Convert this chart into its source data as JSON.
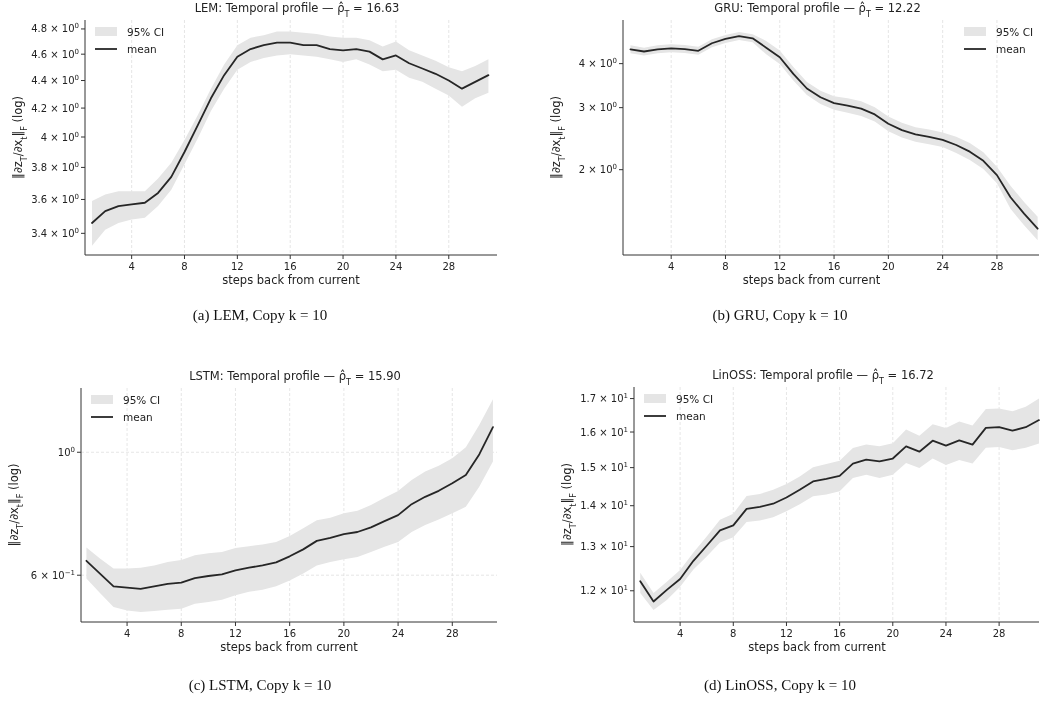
{
  "chart_data": [
    {
      "type": "line",
      "title": "LEM: Temporal profile — ρ̂$_{T}$ = 16.63",
      "xlabel": "steps back from current",
      "ylabel": "‖∂z$_{T}$/∂x$_{t}$‖$_{F}$ (log)",
      "annotations": [
        "95% CI",
        "(a) LEM, Copy k = 10"
      ],
      "log": "y",
      "grid": "x",
      "legend": "top left",
      "line_style": "solid",
      "x": [
        1,
        2,
        3,
        4,
        5,
        6,
        7,
        8,
        9,
        10,
        11,
        12,
        13,
        14,
        15,
        16,
        17,
        18,
        19,
        20,
        21,
        22,
        23,
        24,
        25,
        26,
        27,
        28,
        29,
        30,
        31
      ],
      "xlim": [
        0.47,
        31.65
      ],
      "xticks": [
        4,
        8,
        12,
        16,
        20,
        24,
        28
      ],
      "ylim": [
        3.278,
        4.873
      ],
      "yticks": [
        {
          "value": 3.4,
          "label": "3.4 × 10$^{0}$"
        },
        {
          "value": 3.6,
          "label": "3.6 × 10$^{0}$"
        },
        {
          "value": 3.8,
          "label": "3.8 × 10$^{0}$"
        },
        {
          "value": 4,
          "label": "4 × 10$^{0}$"
        },
        {
          "value": 4.2,
          "label": "4.2 × 10$^{0}$"
        },
        {
          "value": 4.4,
          "label": "4.4 × 10$^{0}$"
        },
        {
          "value": 4.6,
          "label": "4.6 × 10$^{0}$"
        },
        {
          "value": 4.8,
          "label": "4.8 × 10$^{0}$"
        }
      ],
      "series": [
        {
          "name": "mean",
          "color": "#262626",
          "values": [
            3.46,
            3.53,
            3.56,
            3.57,
            3.58,
            3.64,
            3.74,
            3.9,
            4.08,
            4.27,
            4.44,
            4.58,
            4.64,
            4.67,
            4.69,
            4.69,
            4.67,
            4.67,
            4.64,
            4.63,
            4.64,
            4.62,
            4.56,
            4.59,
            4.53,
            4.49,
            4.45,
            4.4,
            4.34,
            4.39,
            4.44
          ],
          "lower": [
            3.33,
            3.42,
            3.46,
            3.48,
            3.49,
            3.56,
            3.66,
            3.82,
            3.99,
            4.18,
            4.34,
            4.48,
            4.54,
            4.57,
            4.59,
            4.6,
            4.59,
            4.58,
            4.56,
            4.54,
            4.56,
            4.52,
            4.47,
            4.48,
            4.42,
            4.39,
            4.34,
            4.29,
            4.21,
            4.27,
            4.31
          ],
          "upper": [
            3.59,
            3.63,
            3.65,
            3.65,
            3.65,
            3.73,
            3.83,
            3.98,
            4.15,
            4.34,
            4.52,
            4.67,
            4.73,
            4.75,
            4.78,
            4.78,
            4.77,
            4.76,
            4.74,
            4.73,
            4.73,
            4.71,
            4.66,
            4.7,
            4.63,
            4.59,
            4.55,
            4.5,
            4.47,
            4.51,
            4.56
          ]
        }
      ]
    },
    {
      "type": "line",
      "title": "GRU: Temporal profile — ρ̂$_{T}$ = 12.22",
      "xlabel": "steps back from current",
      "ylabel": "‖∂z$_{T}$/∂x$_{t}$‖$_{F}$ (log)",
      "annotations": [
        "95% CI",
        "(b) GRU, Copy k = 10"
      ],
      "log": "y",
      "grid": "x",
      "legend": "top right",
      "line_style": "solid",
      "x": [
        1,
        2,
        3,
        4,
        5,
        6,
        7,
        8,
        9,
        10,
        11,
        12,
        13,
        14,
        15,
        16,
        17,
        18,
        19,
        20,
        21,
        22,
        23,
        24,
        25,
        26,
        27,
        28,
        29,
        30,
        31
      ],
      "xlim": [
        0.45,
        31.1
      ],
      "xticks": [
        4,
        8,
        12,
        16,
        20,
        24,
        28
      ],
      "ylim": [
        1.145,
        5.32
      ],
      "yticks": [
        {
          "value": 2,
          "label": "2 × 10$^{0}$"
        },
        {
          "value": 3,
          "label": "3 × 10$^{0}$"
        },
        {
          "value": 4,
          "label": "4 × 10$^{0}$"
        }
      ],
      "series": [
        {
          "name": "mean",
          "color": "#262626",
          "values": [
            4.39,
            4.33,
            4.39,
            4.42,
            4.4,
            4.35,
            4.57,
            4.7,
            4.79,
            4.72,
            4.44,
            4.17,
            3.74,
            3.4,
            3.21,
            3.09,
            3.04,
            2.98,
            2.87,
            2.7,
            2.59,
            2.52,
            2.48,
            2.43,
            2.35,
            2.25,
            2.12,
            1.93,
            1.67,
            1.5,
            1.36
          ],
          "lower": [
            4.28,
            4.22,
            4.28,
            4.31,
            4.29,
            4.24,
            4.45,
            4.58,
            4.67,
            4.6,
            4.25,
            3.99,
            3.58,
            3.26,
            3.07,
            2.96,
            2.9,
            2.84,
            2.74,
            2.57,
            2.47,
            2.4,
            2.36,
            2.32,
            2.23,
            2.13,
            2.01,
            1.83,
            1.55,
            1.39,
            1.26
          ],
          "upper": [
            4.51,
            4.44,
            4.51,
            4.54,
            4.52,
            4.47,
            4.69,
            4.82,
            4.92,
            4.85,
            4.64,
            4.36,
            3.91,
            3.55,
            3.35,
            3.23,
            3.19,
            3.13,
            3.01,
            2.83,
            2.72,
            2.64,
            2.6,
            2.55,
            2.48,
            2.38,
            2.24,
            2.04,
            1.8,
            1.62,
            1.47
          ]
        }
      ]
    },
    {
      "type": "line",
      "title": "LSTM: Temporal profile — ρ̂$_{T}$ = 15.90",
      "xlabel": "steps back from current",
      "ylabel": "‖∂z$_{T}$/∂x$_{t}$‖$_{F}$ (log)",
      "annotations": [
        "95% CI",
        "(c) LSTM, Copy k = 10"
      ],
      "log": "y",
      "grid": true,
      "legend": "top left",
      "line_style": "solid",
      "x": [
        1,
        2,
        3,
        4,
        5,
        6,
        7,
        8,
        9,
        10,
        11,
        12,
        13,
        14,
        15,
        16,
        17,
        18,
        19,
        20,
        21,
        22,
        23,
        24,
        25,
        26,
        27,
        28,
        29,
        30,
        31
      ],
      "xlim": [
        0.6,
        31.3
      ],
      "xticks": [
        4,
        8,
        12,
        16,
        20,
        24,
        28
      ],
      "ylim": [
        0.494,
        1.306
      ],
      "yticks": [
        {
          "value": 0.6,
          "label": "6 × 10$^{−1}$"
        },
        {
          "value": 1,
          "label": "10$^{0}$"
        }
      ],
      "series": [
        {
          "name": "mean",
          "color": "#262626",
          "values": [
            0.637,
            0.604,
            0.573,
            0.57,
            0.567,
            0.573,
            0.579,
            0.582,
            0.593,
            0.598,
            0.602,
            0.612,
            0.619,
            0.625,
            0.633,
            0.649,
            0.668,
            0.692,
            0.701,
            0.712,
            0.718,
            0.732,
            0.751,
            0.77,
            0.806,
            0.831,
            0.852,
            0.879,
            0.91,
            0.992,
            1.11
          ],
          "lower": [
            0.592,
            0.557,
            0.526,
            0.518,
            0.515,
            0.517,
            0.52,
            0.522,
            0.533,
            0.537,
            0.542,
            0.552,
            0.56,
            0.565,
            0.573,
            0.587,
            0.604,
            0.625,
            0.634,
            0.641,
            0.647,
            0.661,
            0.675,
            0.689,
            0.718,
            0.739,
            0.756,
            0.776,
            0.797,
            0.867,
            0.962
          ],
          "upper": [
            0.673,
            0.643,
            0.617,
            0.617,
            0.619,
            0.625,
            0.634,
            0.639,
            0.652,
            0.657,
            0.661,
            0.672,
            0.677,
            0.682,
            0.689,
            0.706,
            0.729,
            0.754,
            0.762,
            0.776,
            0.784,
            0.803,
            0.828,
            0.851,
            0.891,
            0.923,
            0.945,
            0.975,
            1.021,
            1.121,
            1.247
          ]
        }
      ]
    },
    {
      "type": "line",
      "title": "LinOSS: Temporal profile — ρ̂$_{T}$ = 16.72",
      "xlabel": "steps back from current",
      "ylabel": "‖∂z$_{T}$/∂x$_{t}$‖$_{F}$ (log)",
      "annotations": [
        "95% CI",
        "(d) LinOSS, Copy k = 10"
      ],
      "log": "y",
      "grid": "x",
      "legend": "top left",
      "line_style": "solid",
      "x": [
        1,
        2,
        3,
        4,
        5,
        6,
        7,
        8,
        9,
        10,
        11,
        12,
        13,
        14,
        15,
        16,
        17,
        18,
        19,
        20,
        21,
        22,
        23,
        24,
        25,
        26,
        27,
        28,
        29,
        30,
        31
      ],
      "xlim": [
        0.53,
        31
      ],
      "xticks": [
        4,
        8,
        12,
        16,
        20,
        24,
        28
      ],
      "ylim": [
        11.34,
        17.36
      ],
      "yticks": [
        {
          "value": 12,
          "label": "1.2 × 10$^{1}$"
        },
        {
          "value": 13,
          "label": "1.3 × 10$^{1}$"
        },
        {
          "value": 14,
          "label": "1.4 × 10$^{1}$"
        },
        {
          "value": 15,
          "label": "1.5 × 10$^{1}$"
        },
        {
          "value": 16,
          "label": "1.6 × 10$^{1}$"
        },
        {
          "value": 17,
          "label": "1.7 × 10$^{1}$"
        }
      ],
      "series": [
        {
          "name": "mean",
          "color": "#262626",
          "values": [
            12.21,
            11.77,
            12.02,
            12.26,
            12.67,
            13.02,
            13.39,
            13.51,
            13.92,
            13.97,
            14.05,
            14.21,
            14.41,
            14.63,
            14.7,
            14.78,
            15.11,
            15.22,
            15.17,
            15.25,
            15.59,
            15.44,
            15.75,
            15.61,
            15.76,
            15.64,
            16.12,
            16.14,
            16.04,
            16.14,
            16.35
          ],
          "lower": [
            11.95,
            11.59,
            11.8,
            12.09,
            12.47,
            12.77,
            13.1,
            13.22,
            13.59,
            13.63,
            13.71,
            13.86,
            14.04,
            14.24,
            14.29,
            14.37,
            14.72,
            14.81,
            14.72,
            14.81,
            15.13,
            14.99,
            15.25,
            15.07,
            15.21,
            15.11,
            15.55,
            15.57,
            15.48,
            15.55,
            15.67
          ],
          "upper": [
            12.4,
            11.95,
            12.2,
            12.46,
            12.86,
            13.24,
            13.65,
            13.8,
            14.25,
            14.3,
            14.41,
            14.56,
            14.76,
            15.01,
            15.1,
            15.19,
            15.54,
            15.64,
            15.59,
            15.68,
            16.07,
            15.89,
            16.23,
            16.12,
            16.31,
            16.19,
            16.68,
            16.7,
            16.61,
            16.75,
            17.0
          ]
        }
      ]
    }
  ]
}
